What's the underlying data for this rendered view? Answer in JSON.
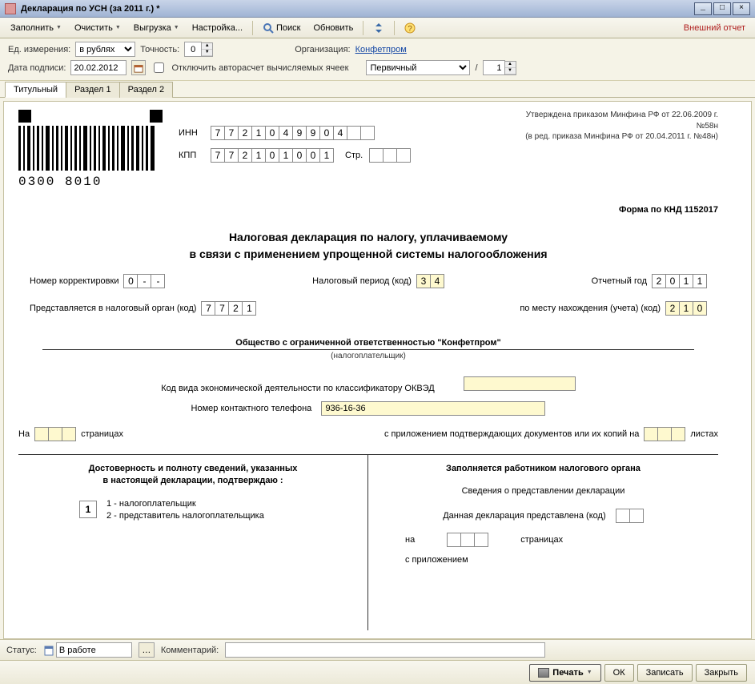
{
  "window": {
    "title": "Декларация по УСН (за 2011 г.) *"
  },
  "toolbar": {
    "fill": "Заполнить",
    "clear": "Очистить",
    "export": "Выгрузка",
    "settings": "Настройка...",
    "search": "Поиск",
    "refresh": "Обновить",
    "external_report": "Внешний отчет"
  },
  "params": {
    "unit_label": "Ед. измерения:",
    "unit_value": "в рублях",
    "precision_label": "Точность:",
    "precision_value": "0",
    "org_label": "Организация:",
    "org_value": "Конфетпром",
    "sign_date_label": "Дата подписи:",
    "sign_date_value": "20.02.2012",
    "disable_autocalc": "Отключить авторасчет вычисляемых ячеек",
    "doctype_value": "Первичный",
    "slash": "/",
    "page_spin": "1"
  },
  "tabs": {
    "t1": "Титульный",
    "t2": "Раздел 1",
    "t3": "Раздел 2"
  },
  "form": {
    "approved1": "Утверждена приказом Минфина РФ от 22.06.2009 г. №58н",
    "approved2": "(в ред. приказа Минфина РФ от 20.04.2011 г. №48н)",
    "inn_label": "ИНН",
    "inn": [
      "7",
      "7",
      "2",
      "1",
      "0",
      "4",
      "9",
      "9",
      "0",
      "4",
      "",
      ""
    ],
    "kpp_label": "КПП",
    "kpp": [
      "7",
      "7",
      "2",
      "1",
      "0",
      "1",
      "0",
      "0",
      "1"
    ],
    "page_label": "Стр.",
    "page_cells": [
      "",
      "",
      ""
    ],
    "knd": "Форма по КНД 1152017",
    "title1": "Налоговая декларация по налогу, уплачиваемому",
    "title2": "в связи с применением упрощенной системы налогообложения",
    "corr_label": "Номер корректировки",
    "corr_cells": [
      "0",
      "-",
      "-"
    ],
    "period_label": "Налоговый период (код)",
    "period_cells": [
      "3",
      "4"
    ],
    "year_label": "Отчетный год",
    "year_cells": [
      "2",
      "0",
      "1",
      "1"
    ],
    "taxorg_label": "Представляется в налоговый орган (код)",
    "taxorg_cells": [
      "7",
      "7",
      "2",
      "1"
    ],
    "place_label": "по месту нахождения (учета) (код)",
    "place_cells": [
      "2",
      "1",
      "0"
    ],
    "org_name": "Общество с ограниченной ответственностью \"Конфетпром\"",
    "org_sub": "(налогоплательщик)",
    "okved_label": "Код вида экономической деятельности по классификатору ОКВЭД",
    "okved_value": "",
    "phone_label": "Номер контактного телефона",
    "phone_value": "936-16-36",
    "on_label": "На",
    "pages_label": "страницах",
    "attach_label": "с приложением подтверждающих документов или их копий на",
    "sheets_label": "листах",
    "left_title1": "Достоверность и полноту сведений, указанных",
    "left_title2": "в настоящей декларации, подтверждаю :",
    "opt1": "1 - налогоплательщик",
    "opt2": "2 - представитель налогоплательщика",
    "opt_value": "1",
    "right_title": "Заполняется работником налогового органа",
    "right_sub": "Сведения о представлении декларации",
    "right_pres": "Данная декларация представлена (код)",
    "right_on": "на",
    "right_pages": "страницах",
    "right_attach": "с приложением",
    "barcode_num": "0300 8010"
  },
  "status": {
    "label": "Статус:",
    "value": "В работе",
    "comment_label": "Комментарий:",
    "comment_value": ""
  },
  "actions": {
    "print": "Печать",
    "ok": "ОК",
    "save": "Записать",
    "close": "Закрыть"
  },
  "colors": {
    "yellow_cell": "#fef9cf",
    "toolbar_bg": "#ece9db",
    "panel_bg": "#f5f3e7",
    "link": "#1346a4",
    "ext_report": "#b02020"
  }
}
